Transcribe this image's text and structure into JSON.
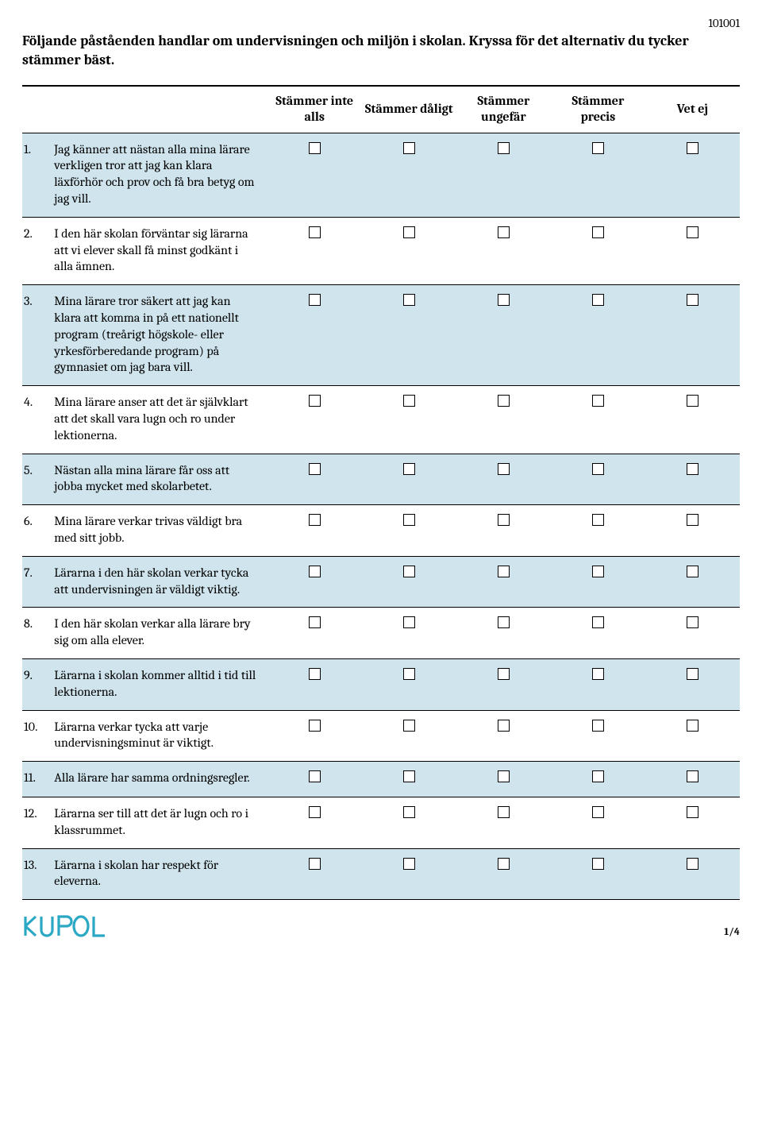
{
  "doc_id": "101001",
  "intro": "Följande påståenden handlar om undervisningen och miljön i skolan. Kryssa för det alternativ du tycker stämmer bäst.",
  "columns": [
    "Stämmer inte alls",
    "Stämmer dåligt",
    "Stämmer ungefär",
    "Stämmer precis",
    "Vet ej"
  ],
  "questions": [
    {
      "n": "1.",
      "text": "Jag känner att nästan alla mina lärare verkligen tror att jag kan klara läxförhör och prov och få bra betyg om jag vill."
    },
    {
      "n": "2.",
      "text": "I den här skolan förväntar sig lärarna att vi elever skall få minst godkänt i alla ämnen."
    },
    {
      "n": "3.",
      "text": "Mina lärare tror säkert att jag kan klara att komma in på ett nationellt program (treårigt högskole- eller yrkesförberedande program) på gymnasiet om jag bara vill."
    },
    {
      "n": "4.",
      "text": "Mina lärare anser att det är självklart att det skall vara lugn och ro under lektionerna."
    },
    {
      "n": "5.",
      "text": "Nästan alla mina lärare får oss att jobba mycket med skolarbetet."
    },
    {
      "n": "6.",
      "text": "Mina lärare verkar trivas väldigt bra med sitt jobb."
    },
    {
      "n": "7.",
      "text": "Lärarna i den här skolan verkar tycka att undervisningen är väldigt viktig."
    },
    {
      "n": "8.",
      "text": "I den här skolan verkar alla lärare bry sig om alla elever."
    },
    {
      "n": "9.",
      "text": "Lärarna i skolan kommer alltid i tid till lektionerna."
    },
    {
      "n": "10.",
      "text": "Lärarna verkar tycka att varje undervisningsminut är viktigt."
    },
    {
      "n": "11.",
      "text": "Alla lärare har samma ordningsregler."
    },
    {
      "n": "12.",
      "text": "Lärarna ser till att det är lugn och ro i klassrummet."
    },
    {
      "n": "13.",
      "text": "Lärarna i skolan har respekt för eleverna."
    }
  ],
  "page_number": "1/4",
  "colors": {
    "shade": "#cfe4ec",
    "logo": "#2aa8c4",
    "text": "#000000",
    "background": "#ffffff"
  }
}
